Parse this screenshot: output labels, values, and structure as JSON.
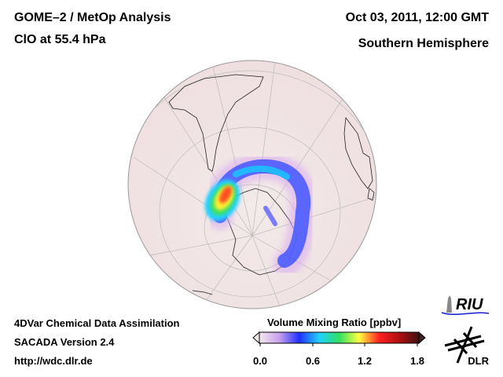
{
  "header": {
    "title": "GOME–2 / MetOp Analysis",
    "subtitle": "ClO at 55.4 hPa",
    "date": "Oct 03, 2011, 12:00 GMT",
    "hemisphere": "Southern Hemisphere"
  },
  "footer": {
    "line1": "4DVar Chemical Data Assimilation",
    "line2": "SACADA Version 2.4",
    "line3": "http://wdc.dlr.de"
  },
  "colorbar": {
    "label": "Volume Mixing Ratio [ppbv]",
    "ticks": [
      "0.0",
      "0.6",
      "1.2",
      "1.8"
    ],
    "range": [
      0.0,
      1.8
    ],
    "colors": [
      "#f4e8ea",
      "#c9a0ee",
      "#2030ff",
      "#20d0ff",
      "#30e060",
      "#ffff40",
      "#ff2020",
      "#b01010",
      "#401010"
    ]
  },
  "logos": {
    "riu": "RIU",
    "dlr": "DLR"
  }
}
